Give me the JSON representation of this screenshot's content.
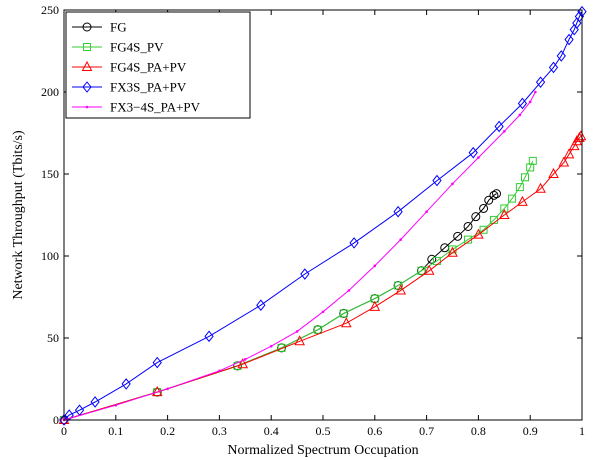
{
  "chart_data": {
    "type": "line",
    "title": "",
    "xlabel": "Normalized Spectrum Occupation",
    "ylabel": "Network Throughput (Tbits/s)",
    "xlim": [
      0,
      1
    ],
    "ylim": [
      0,
      250
    ],
    "xticks": [
      "0",
      "0.1",
      "0.2",
      "0.3",
      "0.4",
      "0.5",
      "0.6",
      "0.7",
      "0.8",
      "0.9",
      "1"
    ],
    "yticks": [
      "0",
      "50",
      "100",
      "150",
      "200",
      "250"
    ],
    "grid": false,
    "legend_position": "top-left",
    "series": [
      {
        "name": "FG",
        "color": "#000000",
        "marker": "circle",
        "x": [
          0,
          0.18,
          0.335,
          0.42,
          0.49,
          0.54,
          0.6,
          0.645,
          0.69,
          0.71,
          0.735,
          0.76,
          0.78,
          0.795,
          0.81,
          0.82,
          0.83,
          0.835
        ],
        "y": [
          0,
          17,
          33,
          44,
          55,
          65,
          74,
          82,
          91,
          98,
          105,
          112,
          118,
          124,
          129,
          134,
          137,
          138
        ]
      },
      {
        "name": "FG4S_PV",
        "color": "#33CC33",
        "marker": "square",
        "x": [
          0,
          0.18,
          0.335,
          0.42,
          0.49,
          0.54,
          0.6,
          0.645,
          0.69,
          0.72,
          0.75,
          0.78,
          0.81,
          0.83,
          0.85,
          0.865,
          0.88,
          0.89,
          0.9,
          0.905
        ],
        "y": [
          0,
          17,
          33,
          44,
          55,
          65,
          74,
          82,
          91,
          97,
          104,
          110,
          116,
          122,
          129,
          135,
          142,
          148,
          154,
          158
        ]
      },
      {
        "name": "FG4S_PA+PV",
        "color": "#FF0000",
        "marker": "triangle",
        "x": [
          0,
          0.18,
          0.345,
          0.455,
          0.545,
          0.6,
          0.65,
          0.705,
          0.75,
          0.8,
          0.85,
          0.885,
          0.92,
          0.945,
          0.965,
          0.975,
          0.985,
          0.99,
          0.995,
          0.998
        ],
        "y": [
          0,
          17,
          34,
          48,
          59,
          69,
          79,
          91,
          102,
          113,
          125,
          133,
          141,
          150,
          157,
          162,
          167,
          170,
          172,
          173
        ]
      },
      {
        "name": "FX3S_PA+PV",
        "color": "#0000FF",
        "marker": "diamond",
        "x": [
          0,
          0.01,
          0.03,
          0.06,
          0.12,
          0.18,
          0.28,
          0.38,
          0.465,
          0.56,
          0.645,
          0.72,
          0.79,
          0.84,
          0.885,
          0.92,
          0.945,
          0.96,
          0.975,
          0.985,
          0.99,
          0.995,
          1.0
        ],
        "y": [
          0,
          3,
          6,
          11,
          22,
          35,
          51,
          70,
          89,
          108,
          127,
          146,
          163,
          179,
          193,
          206,
          215,
          222,
          232,
          238,
          242,
          246,
          249
        ]
      },
      {
        "name": "FX3−4S_PA+PV",
        "color": "#FF00FF",
        "marker": "dot",
        "x": [
          0,
          0.1,
          0.2,
          0.3,
          0.35,
          0.4,
          0.45,
          0.5,
          0.55,
          0.6,
          0.65,
          0.7,
          0.75,
          0.8,
          0.85,
          0.88,
          0.9,
          0.91
        ],
        "y": [
          0,
          9,
          19,
          30,
          37,
          45,
          54,
          66,
          79,
          94,
          110,
          127,
          144,
          160,
          176,
          186,
          194,
          200
        ]
      }
    ]
  }
}
